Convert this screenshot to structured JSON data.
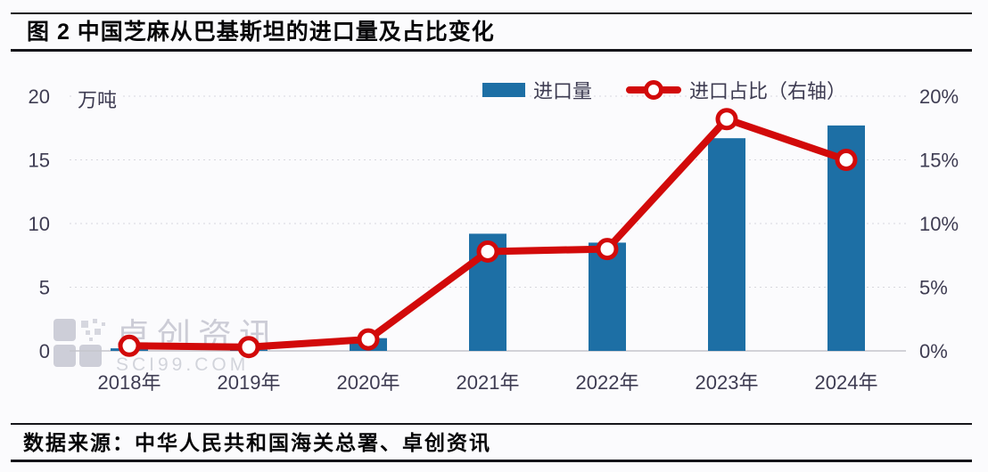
{
  "figure": {
    "title": "图 2  中国芝麻从巴基斯坦的进口量及占比变化",
    "source": "数据来源：中华人民共和国海关总署、卓创资讯"
  },
  "chart_data": {
    "type": "bar+line combo",
    "title": "中国芝麻从巴基斯坦的进口量及占比变化",
    "categories": [
      "2018年",
      "2019年",
      "2020年",
      "2021年",
      "2022年",
      "2023年",
      "2024年"
    ],
    "series": [
      {
        "name": "进口量",
        "type": "bar",
        "axis": "left",
        "unit": "万吨",
        "color": "#1d6fa5",
        "values": [
          0.2,
          0.1,
          1.0,
          9.2,
          8.5,
          16.7,
          17.7
        ]
      },
      {
        "name": "进口占比（右轴）",
        "type": "line",
        "axis": "right",
        "unit": "%",
        "color": "#d20a0a",
        "marker": "open-circle",
        "values": [
          0.4,
          0.3,
          0.9,
          7.8,
          8.0,
          18.2,
          15.0
        ]
      }
    ],
    "left_axis": {
      "unit_label": "万吨",
      "ticks": [
        0,
        5,
        10,
        15,
        20
      ],
      "range": [
        0,
        20
      ]
    },
    "right_axis": {
      "ticks": [
        "0%",
        "5%",
        "10%",
        "15%",
        "20%"
      ],
      "range": [
        0,
        20
      ]
    },
    "legend_position": "top",
    "grid": "horizontal dashed",
    "colors": {
      "bar": "#1d6fa5",
      "line": "#d20a0a",
      "grid": "#d7d7de",
      "baseline": "#c5c5cc",
      "tick_text": "#3e3c52"
    }
  },
  "watermark": {
    "name": "卓创资讯",
    "domain": "SCI99.COM"
  }
}
